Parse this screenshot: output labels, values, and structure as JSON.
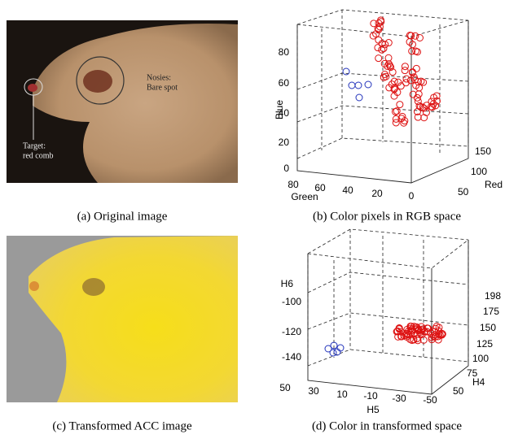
{
  "figures": [
    {
      "caption": "(a) Original image",
      "annotations": [
        "Nosies:",
        "Bare spot",
        "Target:",
        "red comb"
      ]
    },
    {
      "caption": "(b) Color pixels in RGB space",
      "axes": {
        "z": {
          "label": "Blue",
          "ticks": [
            80,
            60,
            40,
            20,
            0
          ]
        },
        "x": {
          "label": "Green",
          "ticks": [
            80,
            60,
            40,
            20,
            0
          ]
        },
        "y": {
          "label": "Red",
          "ticks": [
            150,
            100,
            50
          ]
        }
      }
    },
    {
      "caption": "(c) Transformed ACC image"
    },
    {
      "caption": "(d) Color in transformed space",
      "axes": {
        "z": {
          "label": "H6",
          "ticks": [
            -100,
            -120,
            -140
          ]
        },
        "x": {
          "label": "H5",
          "ticks": [
            50,
            30,
            10,
            -10,
            -30,
            -50
          ]
        },
        "y": {
          "label": "H4",
          "ticks": [
            198,
            175,
            150,
            125,
            100,
            75,
            50
          ]
        }
      }
    }
  ]
}
